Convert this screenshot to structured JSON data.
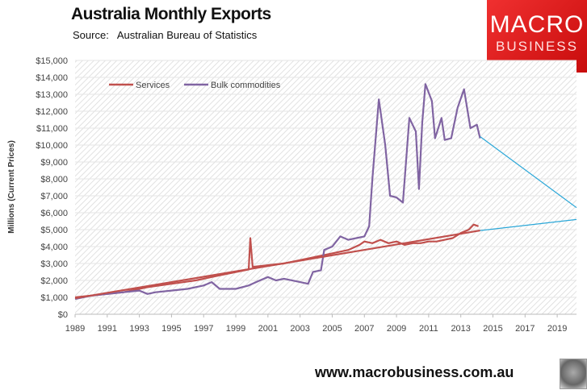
{
  "header": {
    "title": "Australia Monthly Exports",
    "source_label": "Source:",
    "source": "Australian Bureau of Statistics"
  },
  "logo": {
    "line1": "MACRO",
    "line2": "BUSINESS",
    "color": "#e01e1e"
  },
  "footer": {
    "website": "www.macrobusiness.com.au"
  },
  "chart_data": {
    "type": "line",
    "title": "Australia Monthly Exports",
    "ylabel": "Millions (Current Prices)",
    "xlabel": "",
    "xlim": [
      1989,
      2020.2
    ],
    "ylim": [
      0,
      15000
    ],
    "x_ticks": [
      "1989",
      "1991",
      "1993",
      "1995",
      "1997",
      "1999",
      "2001",
      "2003",
      "2005",
      "2007",
      "2009",
      "2011",
      "2013",
      "2015",
      "2017",
      "2019"
    ],
    "y_ticks": [
      "$0",
      "$1,000",
      "$2,000",
      "$3,000",
      "$4,000",
      "$5,000",
      "$6,000",
      "$7,000",
      "$8,000",
      "$9,000",
      "$10,000",
      "$11,000",
      "$12,000",
      "$13,000",
      "$14,000",
      "$15,000"
    ],
    "grid": true,
    "legend": "top-left",
    "series": [
      {
        "name": "Services",
        "color": "#c0504d",
        "points": [
          [
            1989,
            1000
          ],
          [
            1990,
            1100
          ],
          [
            1992,
            1300
          ],
          [
            1993.5,
            1600
          ],
          [
            1995,
            1800
          ],
          [
            1996.5,
            2000
          ],
          [
            1998,
            2300
          ],
          [
            1999.8,
            2650
          ],
          [
            1999.9,
            4500
          ],
          [
            2000.05,
            2800
          ],
          [
            2001,
            2900
          ],
          [
            2002,
            3000
          ],
          [
            2003,
            3200
          ],
          [
            2004,
            3400
          ],
          [
            2005,
            3600
          ],
          [
            2006,
            3800
          ],
          [
            2006.7,
            4100
          ],
          [
            2007,
            4300
          ],
          [
            2007.5,
            4200
          ],
          [
            2008,
            4400
          ],
          [
            2008.5,
            4200
          ],
          [
            2009,
            4300
          ],
          [
            2009.5,
            4100
          ],
          [
            2010,
            4200
          ],
          [
            2010.5,
            4200
          ],
          [
            2011,
            4300
          ],
          [
            2011.5,
            4300
          ],
          [
            2012,
            4400
          ],
          [
            2012.5,
            4500
          ],
          [
            2013,
            4800
          ],
          [
            2013.5,
            5000
          ],
          [
            2013.8,
            5300
          ],
          [
            2014.1,
            5200
          ]
        ]
      },
      {
        "name": "Bulk commodities",
        "color": "#8064a2",
        "points": [
          [
            1989,
            900
          ],
          [
            1990,
            1100
          ],
          [
            1991,
            1200
          ],
          [
            1992,
            1300
          ],
          [
            1993,
            1400
          ],
          [
            1993.5,
            1200
          ],
          [
            1994,
            1300
          ],
          [
            1995,
            1400
          ],
          [
            1996,
            1500
          ],
          [
            1997,
            1700
          ],
          [
            1997.5,
            1900
          ],
          [
            1998,
            1500
          ],
          [
            1999,
            1500
          ],
          [
            1999.8,
            1700
          ],
          [
            2000.5,
            2000
          ],
          [
            2001,
            2200
          ],
          [
            2001.5,
            2000
          ],
          [
            2002,
            2100
          ],
          [
            2003,
            1900
          ],
          [
            2003.5,
            1800
          ],
          [
            2003.8,
            2500
          ],
          [
            2004.3,
            2600
          ],
          [
            2004.5,
            3800
          ],
          [
            2005,
            4000
          ],
          [
            2005.5,
            4600
          ],
          [
            2006,
            4400
          ],
          [
            2006.5,
            4500
          ],
          [
            2007,
            4600
          ],
          [
            2007.3,
            5200
          ],
          [
            2007.5,
            8000
          ],
          [
            2007.9,
            12700
          ],
          [
            2008.3,
            10000
          ],
          [
            2008.6,
            7000
          ],
          [
            2009,
            6900
          ],
          [
            2009.4,
            6600
          ],
          [
            2009.8,
            11600
          ],
          [
            2010.2,
            10800
          ],
          [
            2010.4,
            7400
          ],
          [
            2010.6,
            11300
          ],
          [
            2010.8,
            13600
          ],
          [
            2011.2,
            12600
          ],
          [
            2011.4,
            10400
          ],
          [
            2011.8,
            11600
          ],
          [
            2012,
            10300
          ],
          [
            2012.4,
            10400
          ],
          [
            2012.8,
            12200
          ],
          [
            2013.2,
            13300
          ],
          [
            2013.6,
            11000
          ],
          [
            2014,
            11200
          ],
          [
            2014.2,
            10400
          ]
        ]
      }
    ],
    "trendlines": [
      {
        "of": "Services",
        "color": "#c0504d",
        "points": [
          [
            1989,
            950
          ],
          [
            2014.2,
            4950
          ]
        ]
      },
      {
        "of": "Services projection",
        "color": "#2aa7d8",
        "points": [
          [
            2014.2,
            4950
          ],
          [
            2020.2,
            5600
          ]
        ]
      },
      {
        "of": "Bulk commodities projection",
        "color": "#2aa7d8",
        "points": [
          [
            2014.2,
            10500
          ],
          [
            2020.2,
            6300
          ]
        ]
      }
    ]
  }
}
